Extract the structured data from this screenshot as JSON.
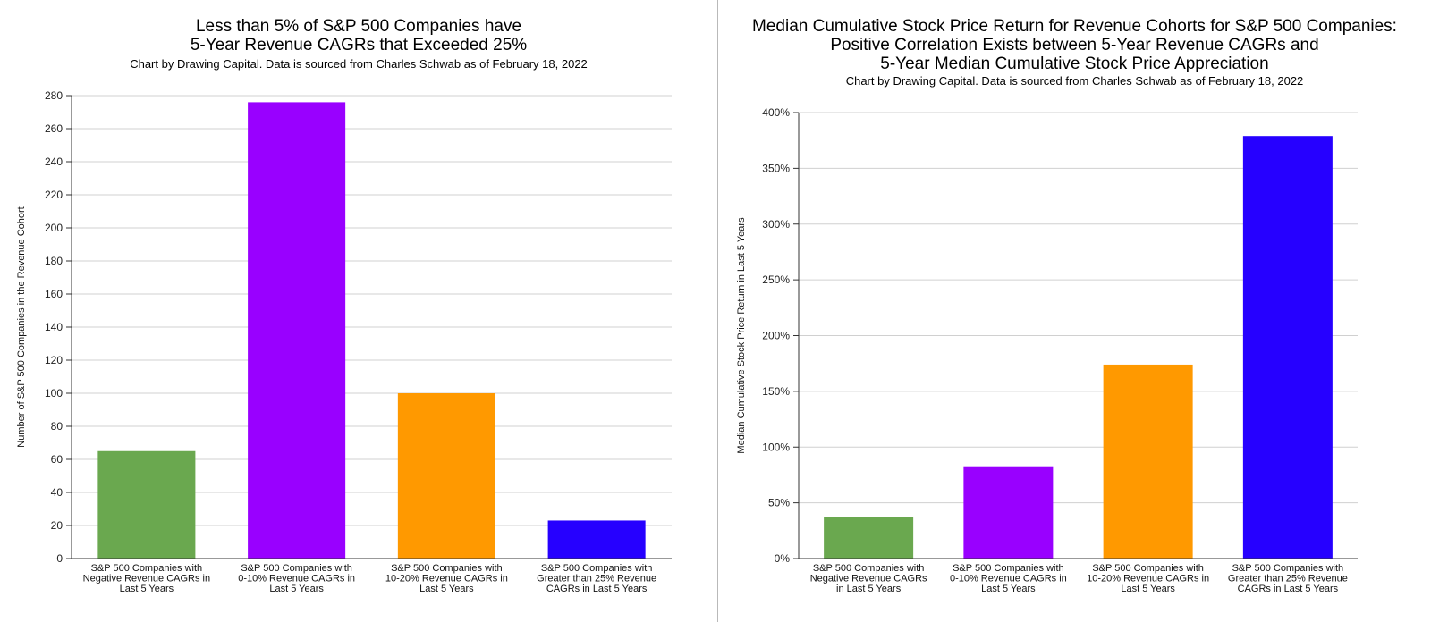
{
  "chart_data": [
    {
      "type": "bar",
      "title_lines": [
        "Less than 5% of S&P 500 Companies have",
        "5-Year Revenue CAGRs that Exceeded 25%"
      ],
      "subtitle": "Chart by Drawing Capital. Data is sourced from Charles Schwab as of February 18, 2022",
      "xlabel": "",
      "ylabel": "Number of S&P 500 Companies in the Revenue Cohort",
      "ylim": [
        0,
        280
      ],
      "yticks": [
        0,
        20,
        40,
        60,
        80,
        100,
        120,
        140,
        160,
        180,
        200,
        220,
        240,
        260,
        280
      ],
      "ytick_labels": [
        "0",
        "20",
        "40",
        "60",
        "80",
        "100",
        "120",
        "140",
        "160",
        "180",
        "200",
        "220",
        "240",
        "260",
        "280"
      ],
      "grid": true,
      "categories": [
        [
          "S&P 500 Companies with",
          "Negative Revenue CAGRs in",
          "Last 5 Years"
        ],
        [
          "S&P 500 Companies with",
          "0-10% Revenue CAGRs in",
          "Last 5 Years"
        ],
        [
          "S&P 500 Companies with",
          "10-20% Revenue CAGRs in",
          "Last 5 Years"
        ],
        [
          "S&P 500 Companies with",
          "Greater than 25% Revenue",
          "CAGRs in Last 5 Years"
        ]
      ],
      "values": [
        65,
        276,
        100,
        23
      ],
      "colors": [
        "#6aa84f",
        "#9900ff",
        "#ff9900",
        "#2600ff"
      ]
    },
    {
      "type": "bar",
      "title_lines": [
        "Median Cumulative Stock Price Return for Revenue Cohorts for S&P 500 Companies:",
        "Positive Correlation Exists between 5-Year Revenue CAGRs and",
        "5-Year Median Cumulative Stock Price Appreciation"
      ],
      "subtitle": "Chart by Drawing Capital. Data is sourced from Charles Schwab as of February 18, 2022",
      "xlabel": "",
      "ylabel": "Median Cumulative Stock Price Return in Last 5 Years",
      "ylim": [
        0,
        400
      ],
      "yticks": [
        0,
        50,
        100,
        150,
        200,
        250,
        300,
        350,
        400
      ],
      "ytick_labels": [
        "0%",
        "50%",
        "100%",
        "150%",
        "200%",
        "250%",
        "300%",
        "350%",
        "400%"
      ],
      "grid": true,
      "categories": [
        [
          "S&P 500 Companies with",
          "Negative Revenue CAGRs",
          "in Last 5 Years"
        ],
        [
          "S&P 500 Companies with",
          "0-10% Revenue CAGRs in",
          "Last 5 Years"
        ],
        [
          "S&P 500 Companies with",
          "10-20% Revenue CAGRs in",
          "Last 5 Years"
        ],
        [
          "S&P 500 Companies with",
          "Greater than 25% Revenue",
          "CAGRs in Last 5 Years"
        ]
      ],
      "values": [
        37,
        82,
        174,
        379
      ],
      "colors": [
        "#6aa84f",
        "#9900ff",
        "#ff9900",
        "#2600ff"
      ]
    }
  ]
}
